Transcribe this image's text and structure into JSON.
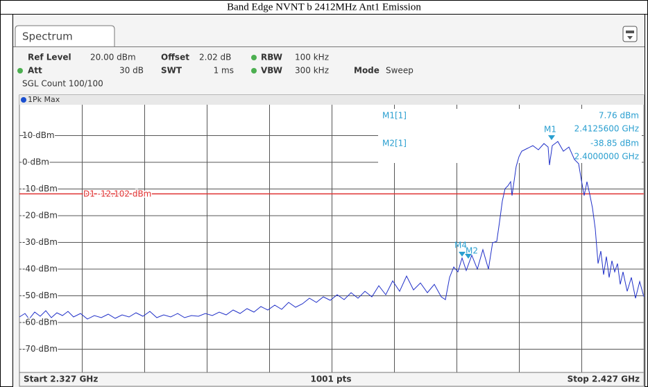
{
  "title": "Band Edge NVNT b 2412MHz Ant1 Emission",
  "tab": "Spectrum",
  "info": {
    "ref_level_label": "Ref Level",
    "ref_level": "20.00 dBm",
    "offset_label": "Offset",
    "offset": "2.02 dB",
    "rbw_label": "RBW",
    "rbw": "100 kHz",
    "att_label": "Att",
    "att": "30 dB",
    "swt_label": "SWT",
    "swt": "1 ms",
    "vbw_label": "VBW",
    "vbw": "300 kHz",
    "mode_label": "Mode",
    "mode": "Sweep",
    "count": "SGL Count 100/100"
  },
  "trace_label": "1Pk Max",
  "y_labels": [
    "10 dBm",
    "0 dBm",
    "-10 dBm",
    "-20 dBm",
    "-30 dBm",
    "-40 dBm",
    "-50 dBm",
    "-60 dBm",
    "-70 dBm"
  ],
  "limit_line": "D1  -12.102 dBm",
  "markers": {
    "m1_name": "M1[1]",
    "m1_level": "7.76 dBm",
    "m1_freq": "2.4125600 GHz",
    "m2_name": "M2[1]",
    "m2_level": "-38.85 dBm",
    "m2_freq": "2.4000000 GHz",
    "m1": "M1",
    "m2": "M2",
    "m4": "M4"
  },
  "footer": {
    "start": "Start 2.327 GHz",
    "points": "1001 pts",
    "stop": "Stop 2.427 GHz"
  }
}
